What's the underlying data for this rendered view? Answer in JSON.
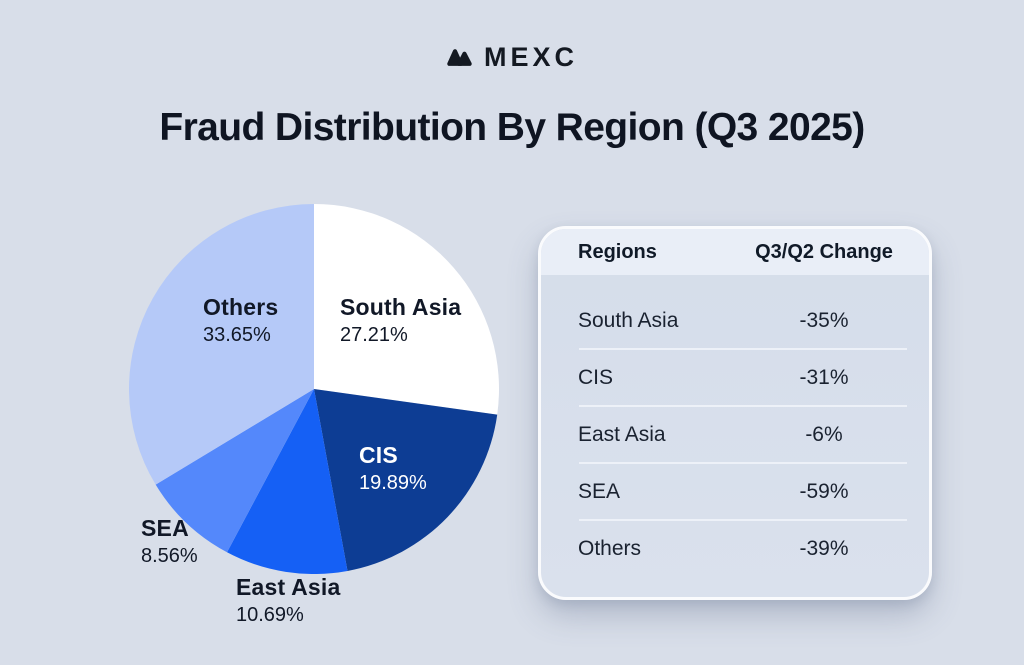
{
  "brand": {
    "name": "MEXC",
    "icon": "mexc-mountains-icon",
    "color": "#141922"
  },
  "title": "Fraud Distribution By Region (Q3 2025)",
  "chart_data": {
    "type": "pie",
    "title": "Fraud Distribution By Region (Q3 2025)",
    "start_angle_deg": 0,
    "direction": "clockwise",
    "unit": "%",
    "slices": [
      {
        "label": "South Asia",
        "value": 27.21,
        "pct_label": "27.21%",
        "color": "#ffffff",
        "label_color": "#111827"
      },
      {
        "label": "CIS",
        "value": 19.89,
        "pct_label": "19.89%",
        "color": "#0d3d94",
        "label_color": "#ffffff"
      },
      {
        "label": "East Asia",
        "value": 10.69,
        "pct_label": "10.69%",
        "color": "#1560f5",
        "label_color": "#111827"
      },
      {
        "label": "SEA",
        "value": 8.56,
        "pct_label": "8.56%",
        "color": "#5488fb",
        "label_color": "#111827"
      },
      {
        "label": "Others",
        "value": 33.65,
        "pct_label": "33.65%",
        "color": "#b5c9f8",
        "label_color": "#111827"
      }
    ]
  },
  "table": {
    "headers": [
      "Regions",
      "Q3/Q2 Change"
    ],
    "rows": [
      {
        "region": "South Asia",
        "change": "-35%"
      },
      {
        "region": "CIS",
        "change": "-31%"
      },
      {
        "region": "East Asia",
        "change": "-6%"
      },
      {
        "region": "SEA",
        "change": "-59%"
      },
      {
        "region": "Others",
        "change": "-39%"
      }
    ]
  },
  "colors": {
    "background": "#d8dee9",
    "title_text": "#0f1522",
    "card_header_bg": "#e9eef7",
    "card_body_bg": "#d7dfec",
    "card_border": "#fafbfd",
    "row_divider": "#edf1f8",
    "row_text": "#1a2230"
  }
}
